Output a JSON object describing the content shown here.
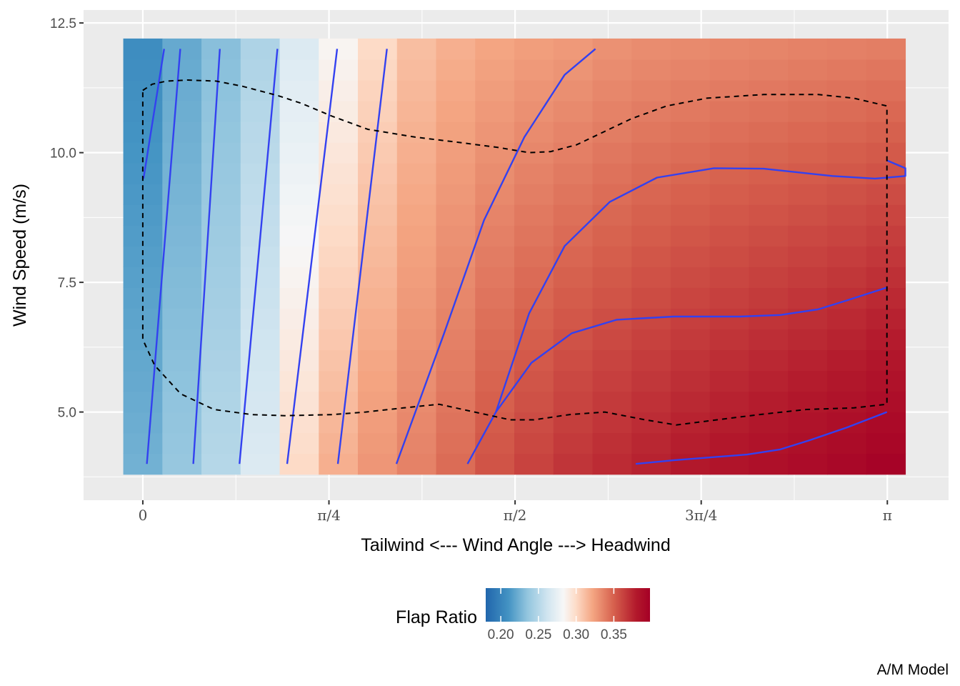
{
  "chart_data": {
    "type": "heatmap",
    "xlabel": "Tailwind  <---  Wind Angle  --->  Headwind",
    "ylabel": "Wind Speed (m/s)",
    "caption": "A/M Model",
    "x_ticks": [
      {
        "value": 0,
        "label": "0"
      },
      {
        "value": 0.7854,
        "label": "π/4"
      },
      {
        "value": 1.5708,
        "label": "π/2"
      },
      {
        "value": 2.3562,
        "label": "3π/4"
      },
      {
        "value": 3.1416,
        "label": "π"
      }
    ],
    "y_ticks": [
      {
        "value": 5.0,
        "label": "5.0"
      },
      {
        "value": 7.5,
        "label": "7.5"
      },
      {
        "value": 10.0,
        "label": "10.0"
      },
      {
        "value": 12.5,
        "label": "12.5"
      }
    ],
    "xlim": [
      -0.25,
      3.4
    ],
    "ylim": [
      3.3,
      12.75
    ],
    "heatmap": {
      "x_centers": [
        0.0,
        0.165,
        0.33,
        0.495,
        0.66,
        0.825,
        0.99,
        1.155,
        1.32,
        1.485,
        1.65,
        1.815,
        1.98,
        2.145,
        2.31,
        2.475,
        2.64,
        2.805,
        2.97,
        3.135
      ],
      "x_range": [
        -0.0825,
        3.2175
      ],
      "y_range": [
        3.8,
        12.2
      ],
      "y_rows": 21,
      "ratio_low_speed": [
        0.225,
        0.237,
        0.25,
        0.268,
        0.3,
        0.318,
        0.328,
        0.336,
        0.345,
        0.355,
        0.362,
        0.368,
        0.372,
        0.376,
        0.38,
        0.383,
        0.386,
        0.389,
        0.392,
        0.396
      ],
      "ratio_high_speed": [
        0.206,
        0.221,
        0.232,
        0.247,
        0.268,
        0.285,
        0.3,
        0.312,
        0.318,
        0.322,
        0.325,
        0.327,
        0.33,
        0.332,
        0.333,
        0.334,
        0.335,
        0.336,
        0.337,
        0.338
      ]
    },
    "legend": {
      "title": "Flap Ratio",
      "position": "bottom",
      "range": [
        0.18,
        0.398
      ],
      "ticks": [
        {
          "value": 0.2,
          "label": "0.20"
        },
        {
          "value": 0.25,
          "label": "0.25"
        },
        {
          "value": 0.3,
          "label": "0.30"
        },
        {
          "value": 0.35,
          "label": "0.35"
        }
      ],
      "colors": [
        "#2166ac",
        "#4393c3",
        "#92c5de",
        "#d1e5f0",
        "#f7f7f7",
        "#fddbc7",
        "#f4a582",
        "#d6604d",
        "#b2182b",
        "#a50026"
      ],
      "stops": [
        0.18,
        0.21,
        0.235,
        0.262,
        0.283,
        0.3,
        0.322,
        0.35,
        0.38,
        0.398
      ]
    },
    "contours": [
      [
        [
          0.003,
          9.5
        ],
        [
          0.09,
          12.0
        ]
      ],
      [
        [
          0.017,
          4.0
        ],
        [
          0.158,
          12.0
        ]
      ],
      [
        [
          0.213,
          4.0
        ],
        [
          0.325,
          12.0
        ]
      ],
      [
        [
          0.408,
          4.0
        ],
        [
          0.568,
          12.0
        ]
      ],
      [
        [
          0.609,
          4.0
        ],
        [
          0.82,
          12.0
        ]
      ],
      [
        [
          0.823,
          4.0
        ],
        [
          1.03,
          12.0
        ]
      ],
      [
        [
          1.07,
          4.0
        ],
        [
          1.15,
          5.0
        ],
        [
          1.27,
          6.5
        ],
        [
          1.44,
          8.7
        ],
        [
          1.61,
          10.3
        ],
        [
          1.78,
          11.5
        ],
        [
          1.91,
          12.0
        ]
      ],
      [
        [
          1.37,
          4.0
        ],
        [
          1.49,
          5.0
        ],
        [
          1.63,
          6.9
        ],
        [
          1.78,
          8.2
        ],
        [
          1.97,
          9.05
        ],
        [
          2.17,
          9.52
        ],
        [
          2.41,
          9.7
        ],
        [
          2.62,
          9.69
        ],
        [
          2.91,
          9.55
        ],
        [
          3.09,
          9.5
        ],
        [
          3.27,
          9.55
        ],
        [
          3.45,
          9.7
        ],
        [
          3.14,
          9.85
        ]
      ],
      [
        [
          1.49,
          5.0
        ],
        [
          1.64,
          5.95
        ],
        [
          1.81,
          6.52
        ],
        [
          2.0,
          6.78
        ],
        [
          2.24,
          6.84
        ],
        [
          2.52,
          6.84
        ],
        [
          2.69,
          6.87
        ],
        [
          2.85,
          6.98
        ],
        [
          2.97,
          7.15
        ],
        [
          3.14,
          7.4
        ]
      ],
      [
        [
          2.08,
          4.0
        ],
        [
          2.24,
          4.07
        ],
        [
          2.55,
          4.18
        ],
        [
          2.69,
          4.28
        ],
        [
          2.81,
          4.45
        ],
        [
          2.97,
          4.7
        ],
        [
          3.14,
          5.0
        ]
      ]
    ],
    "boundary": [
      [
        0.0,
        11.2
      ],
      [
        0.04,
        11.32
      ],
      [
        0.1,
        11.38
      ],
      [
        0.19,
        11.4
      ],
      [
        0.31,
        11.38
      ],
      [
        0.42,
        11.28
      ],
      [
        0.57,
        11.1
      ],
      [
        0.67,
        10.95
      ],
      [
        0.8,
        10.7
      ],
      [
        0.95,
        10.45
      ],
      [
        1.15,
        10.3
      ],
      [
        1.33,
        10.2
      ],
      [
        1.5,
        10.1
      ],
      [
        1.63,
        10.0
      ],
      [
        1.72,
        10.02
      ],
      [
        1.83,
        10.15
      ],
      [
        2.06,
        10.65
      ],
      [
        2.21,
        10.9
      ],
      [
        2.38,
        11.05
      ],
      [
        2.62,
        11.12
      ],
      [
        2.85,
        11.12
      ],
      [
        3.0,
        11.05
      ],
      [
        3.14,
        10.9
      ],
      [
        3.14,
        5.15
      ],
      [
        3.0,
        5.08
      ],
      [
        2.8,
        5.05
      ],
      [
        2.6,
        4.95
      ],
      [
        2.37,
        4.82
      ],
      [
        2.25,
        4.75
      ],
      [
        2.12,
        4.85
      ],
      [
        1.95,
        5.0
      ],
      [
        1.8,
        4.95
      ],
      [
        1.65,
        4.85
      ],
      [
        1.55,
        4.85
      ],
      [
        1.35,
        5.05
      ],
      [
        1.25,
        5.15
      ],
      [
        1.1,
        5.08
      ],
      [
        0.94,
        5.0
      ],
      [
        0.8,
        4.95
      ],
      [
        0.6,
        4.93
      ],
      [
        0.46,
        4.95
      ],
      [
        0.3,
        5.05
      ],
      [
        0.16,
        5.35
      ],
      [
        0.05,
        5.9
      ],
      [
        0.0,
        6.4
      ],
      [
        0.0,
        11.2
      ]
    ]
  }
}
